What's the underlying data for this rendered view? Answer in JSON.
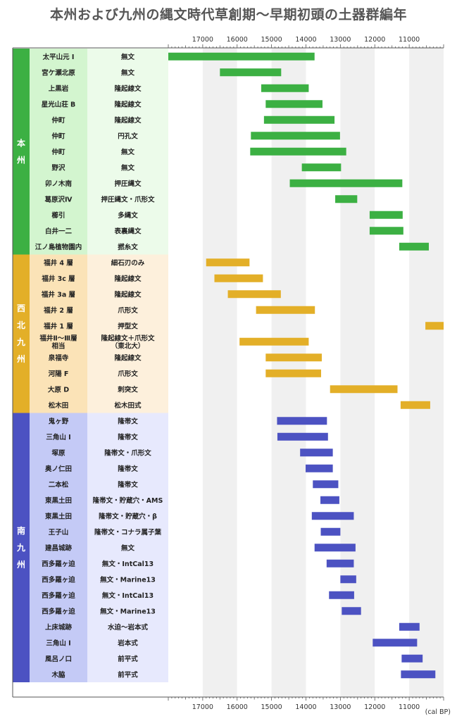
{
  "title": "本州および九州の縄文時代草創期～早期初頭の土器群編年",
  "chart_data": {
    "type": "bar",
    "orientation": "horizontal-range",
    "title": "本州および九州の縄文時代草創期～早期初頭の土器群編年",
    "xlabel": "(cal BP)",
    "x_axis": "reversed",
    "xlim": [
      18000,
      10000
    ],
    "ticks": [
      17000,
      16000,
      15000,
      14000,
      13000,
      12000,
      11000
    ],
    "grid": "alternating-bands",
    "groups": [
      {
        "name": "本州",
        "label_chars": [
          "本",
          "州"
        ],
        "color": "#3cb043",
        "label_bg": "#d3f5cf",
        "type_bg": "#ecfbea",
        "rows": [
          {
            "site": "太平山元 I",
            "type": "無文",
            "start": 18000,
            "end": 13750
          },
          {
            "site": "宮ケ瀬北原",
            "type": "無文",
            "start": 16500,
            "end": 14720
          },
          {
            "site": "上黒岩",
            "type": "隆起線文",
            "start": 15300,
            "end": 13920
          },
          {
            "site": "星光山荘 B",
            "type": "隆起線文",
            "start": 15170,
            "end": 13520
          },
          {
            "site": "仲町",
            "type": "隆起線文",
            "start": 15220,
            "end": 13170
          },
          {
            "site": "仲町",
            "type": "円孔文",
            "start": 15600,
            "end": 13010
          },
          {
            "site": "仲町",
            "type": "無文",
            "start": 15620,
            "end": 12830
          },
          {
            "site": "野沢",
            "type": "無文",
            "start": 14120,
            "end": 12980
          },
          {
            "site": "卯ノ木南",
            "type": "押圧縄文",
            "start": 14470,
            "end": 11200
          },
          {
            "site": "葛原沢Ⅳ",
            "type": "押圧縄文・爪形文",
            "start": 13150,
            "end": 12510
          },
          {
            "site": "櫛引",
            "type": "多縄文",
            "start": 12150,
            "end": 11190
          },
          {
            "site": "白井一二",
            "type": "表裏縄文",
            "start": 12150,
            "end": 11170
          },
          {
            "site": "江ノ島植物園内",
            "type": "撚糸文",
            "start": 11290,
            "end": 10430
          }
        ]
      },
      {
        "name": "西北九州",
        "label_chars": [
          "西",
          "北",
          "九",
          "州"
        ],
        "color": "#e3af28",
        "label_bg": "#fbe3b7",
        "type_bg": "#fdf0dc",
        "rows": [
          {
            "site": "福井 4 層",
            "type": "細石刃のみ",
            "start": 16900,
            "end": 15640
          },
          {
            "site": "福井 3c 層",
            "type": "隆起線文",
            "start": 16660,
            "end": 15250
          },
          {
            "site": "福井 3a 層",
            "type": "隆起線文",
            "start": 16270,
            "end": 14730
          },
          {
            "site": "福井 2 層",
            "type": "爪形文",
            "start": 15450,
            "end": 13740
          },
          {
            "site": "福井 1 層",
            "type": "押型文",
            "start": 10530,
            "end": 10000
          },
          {
            "site": "福井Ⅱ～Ⅲ層相当",
            "site_lines": [
              "福井Ⅱ～Ⅲ層",
              "相当"
            ],
            "type": "隆起線文＋爪形文（東北大）",
            "type_lines": [
              "隆起線文＋爪形文",
              "（東北大）"
            ],
            "start": 15930,
            "end": 13920
          },
          {
            "site": "泉福寺",
            "type": "隆起線文",
            "start": 15170,
            "end": 13540
          },
          {
            "site": "河陽 F",
            "type": "爪形文",
            "start": 15170,
            "end": 13560
          },
          {
            "site": "大原 D",
            "type": "刺突文",
            "start": 13300,
            "end": 11340
          },
          {
            "site": "松木田",
            "type": "松木田式",
            "start": 11250,
            "end": 10390
          }
        ]
      },
      {
        "name": "南九州",
        "label_chars": [
          "南",
          "九",
          "州"
        ],
        "color": "#4c52c2",
        "label_bg": "#c4caf6",
        "type_bg": "#e7e9fd",
        "rows": [
          {
            "site": "鬼ヶ野",
            "type": "隆帯文",
            "start": 14840,
            "end": 13390
          },
          {
            "site": "三角山 I",
            "type": "隆帯文",
            "start": 14830,
            "end": 13360
          },
          {
            "site": "塚原",
            "type": "隆帯文・爪形文",
            "start": 14170,
            "end": 13220
          },
          {
            "site": "奥ノ仁田",
            "type": "隆帯文",
            "start": 14010,
            "end": 13220
          },
          {
            "site": "二本松",
            "type": "隆帯文",
            "start": 13800,
            "end": 13060
          },
          {
            "site": "東黒土田",
            "type": "隆帯文・貯蔵穴・AMS",
            "start": 13580,
            "end": 13030
          },
          {
            "site": "東黒土田",
            "type": "隆帯文・貯蔵穴・β",
            "start": 13830,
            "end": 12610
          },
          {
            "site": "王子山",
            "type": "隆帯文・コナラ属子葉",
            "start": 13570,
            "end": 13000
          },
          {
            "site": "建昌城跡",
            "type": "無文",
            "start": 13750,
            "end": 12560
          },
          {
            "site": "西多羅ヶ迫",
            "type": "無文・IntCal13",
            "start": 13400,
            "end": 12610
          },
          {
            "site": "西多羅ヶ迫",
            "type": "無文・Marine13",
            "start": 13000,
            "end": 12540
          },
          {
            "site": "西多羅ヶ迫",
            "type": "無文・IntCal13",
            "start": 13330,
            "end": 12600
          },
          {
            "site": "西多羅ヶ迫",
            "type": "無文・Marine13",
            "start": 12960,
            "end": 12400
          },
          {
            "site": "上床城跡",
            "type": "水迫～岩本式",
            "start": 11290,
            "end": 10700
          },
          {
            "site": "三角山 I",
            "type": "岩本式",
            "start": 12060,
            "end": 10770
          },
          {
            "site": "風呂ノ口",
            "type": "前平式",
            "start": 11220,
            "end": 10610
          },
          {
            "site": "木脇",
            "type": "前平式",
            "start": 11240,
            "end": 10240
          }
        ]
      }
    ]
  }
}
